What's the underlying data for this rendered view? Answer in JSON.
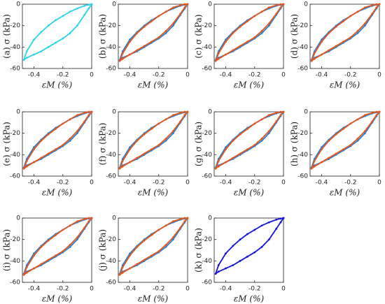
{
  "chart_data": [
    {
      "type": "line",
      "ylabel": "(a) σ (kPa)",
      "xlabel": "εM (%)",
      "xlim": [
        -0.48,
        0
      ],
      "ylim": [
        -60,
        0
      ],
      "xticks": [
        -0.4,
        -0.2,
        0
      ],
      "yticks": [
        -60,
        -40,
        -20,
        0
      ],
      "x": [
        0,
        -0.02,
        -0.05,
        -0.1,
        -0.15,
        -0.2,
        -0.25,
        -0.3,
        -0.35,
        -0.4,
        -0.45,
        -0.47,
        -0.45,
        -0.4,
        -0.35,
        -0.3,
        -0.25,
        -0.2,
        -0.15,
        -0.1,
        -0.05,
        -0.02,
        0
      ],
      "series": [
        {
          "color": "#2ad4ec",
          "values": [
            0,
            -4,
            -10,
            -20,
            -27,
            -32,
            -36,
            -40,
            -44,
            -47,
            -50,
            -52,
            -44,
            -33,
            -26,
            -20,
            -15,
            -11,
            -7,
            -4,
            -1.5,
            -0.5,
            0
          ]
        }
      ]
    },
    {
      "type": "line",
      "ylabel": "(b) σ (kPa)",
      "xlabel": "εM (%)",
      "xlim": [
        -0.48,
        0
      ],
      "ylim": [
        -60,
        0
      ],
      "xticks": [
        -0.4,
        -0.2,
        0
      ],
      "yticks": [
        -60,
        -40,
        -20,
        0
      ],
      "x": [
        0,
        -0.02,
        -0.05,
        -0.1,
        -0.15,
        -0.2,
        -0.25,
        -0.3,
        -0.35,
        -0.4,
        -0.45,
        -0.47,
        -0.45,
        -0.4,
        -0.35,
        -0.3,
        -0.25,
        -0.2,
        -0.15,
        -0.1,
        -0.05,
        -0.02,
        0
      ],
      "series": [
        {
          "color": "#2a7fd4",
          "values": [
            0,
            -4,
            -10,
            -20,
            -27,
            -32,
            -36,
            -40,
            -44,
            -47,
            -50,
            -52,
            -44,
            -33,
            -26,
            -20,
            -15,
            -11,
            -7,
            -4,
            -1.5,
            -0.5,
            0
          ]
        },
        {
          "color": "#e4561e",
          "values": [
            0,
            -3,
            -9,
            -18,
            -25,
            -31,
            -35,
            -39,
            -43,
            -47,
            -51,
            -53,
            -46,
            -35,
            -27,
            -21,
            -16,
            -11,
            -7,
            -3,
            -1,
            0,
            0
          ]
        }
      ]
    },
    {
      "type": "line",
      "ylabel": "(c) σ (kPa)",
      "xlabel": "εM (%)",
      "xlim": [
        -0.48,
        0
      ],
      "ylim": [
        -60,
        0
      ],
      "xticks": [
        -0.4,
        -0.2,
        0
      ],
      "yticks": [
        -60,
        -40,
        -20,
        0
      ],
      "x": [
        0,
        -0.02,
        -0.05,
        -0.1,
        -0.15,
        -0.2,
        -0.25,
        -0.3,
        -0.35,
        -0.4,
        -0.45,
        -0.47,
        -0.45,
        -0.4,
        -0.35,
        -0.3,
        -0.25,
        -0.2,
        -0.15,
        -0.1,
        -0.05,
        -0.02,
        0
      ],
      "series": [
        {
          "color": "#2a7fd4",
          "values": [
            0,
            -4,
            -10,
            -20,
            -27,
            -32,
            -36,
            -40,
            -44,
            -47,
            -50,
            -52,
            -44,
            -33,
            -26,
            -20,
            -15,
            -11,
            -7,
            -4,
            -1.5,
            -0.5,
            0
          ]
        },
        {
          "color": "#e4561e",
          "values": [
            0,
            -3,
            -9,
            -18,
            -25,
            -31,
            -35,
            -39,
            -43,
            -47,
            -51,
            -53,
            -46,
            -35,
            -27,
            -21,
            -16,
            -11,
            -7,
            -3,
            -1,
            0,
            0
          ]
        }
      ]
    },
    {
      "type": "line",
      "ylabel": "(d) σ (kPa)",
      "xlabel": "εM (%)",
      "xlim": [
        -0.48,
        0
      ],
      "ylim": [
        -60,
        0
      ],
      "xticks": [
        -0.4,
        -0.2,
        0
      ],
      "yticks": [
        -60,
        -40,
        -20,
        0
      ],
      "x": [
        0,
        -0.02,
        -0.05,
        -0.1,
        -0.15,
        -0.2,
        -0.25,
        -0.3,
        -0.35,
        -0.4,
        -0.45,
        -0.47,
        -0.45,
        -0.4,
        -0.35,
        -0.3,
        -0.25,
        -0.2,
        -0.15,
        -0.1,
        -0.05,
        -0.02,
        0
      ],
      "series": [
        {
          "color": "#2a7fd4",
          "values": [
            0,
            -4,
            -10,
            -20,
            -27,
            -32,
            -36,
            -40,
            -44,
            -47,
            -50,
            -52,
            -44,
            -33,
            -26,
            -20,
            -15,
            -11,
            -7,
            -4,
            -1.5,
            -0.5,
            0
          ]
        },
        {
          "color": "#e4561e",
          "values": [
            0,
            -3,
            -9,
            -18,
            -25,
            -31,
            -35,
            -39,
            -43,
            -47,
            -51,
            -53,
            -46,
            -35,
            -27,
            -21,
            -16,
            -11,
            -7,
            -3,
            -1,
            0,
            0
          ]
        }
      ]
    },
    {
      "type": "line",
      "ylabel": "(e) σ (kPa)",
      "xlabel": "εM (%)",
      "xlim": [
        -0.48,
        0
      ],
      "ylim": [
        -60,
        0
      ],
      "xticks": [
        -0.4,
        -0.2,
        0
      ],
      "yticks": [
        -60,
        -40,
        -20,
        0
      ],
      "x": [
        0,
        -0.02,
        -0.05,
        -0.1,
        -0.15,
        -0.2,
        -0.25,
        -0.3,
        -0.35,
        -0.4,
        -0.45,
        -0.47,
        -0.45,
        -0.4,
        -0.35,
        -0.3,
        -0.25,
        -0.2,
        -0.15,
        -0.1,
        -0.05,
        -0.02,
        0
      ],
      "series": [
        {
          "color": "#2a7fd4",
          "values": [
            0,
            -4,
            -10,
            -20,
            -27,
            -32,
            -36,
            -40,
            -44,
            -47,
            -50,
            -52,
            -44,
            -33,
            -26,
            -20,
            -15,
            -11,
            -7,
            -4,
            -1.5,
            -0.5,
            0
          ]
        },
        {
          "color": "#e4561e",
          "values": [
            0,
            -3,
            -9,
            -18,
            -25,
            -31,
            -35,
            -39,
            -43,
            -47,
            -51,
            -53,
            -46,
            -35,
            -27,
            -21,
            -16,
            -11,
            -7,
            -3,
            -1,
            0,
            0
          ]
        }
      ]
    },
    {
      "type": "line",
      "ylabel": "(f) σ (kPa)",
      "xlabel": "εM (%)",
      "xlim": [
        -0.48,
        0
      ],
      "ylim": [
        -60,
        0
      ],
      "xticks": [
        -0.4,
        -0.2,
        0
      ],
      "yticks": [
        -60,
        -40,
        -20,
        0
      ],
      "x": [
        0,
        -0.02,
        -0.05,
        -0.1,
        -0.15,
        -0.2,
        -0.25,
        -0.3,
        -0.35,
        -0.4,
        -0.45,
        -0.47,
        -0.45,
        -0.4,
        -0.35,
        -0.3,
        -0.25,
        -0.2,
        -0.15,
        -0.1,
        -0.05,
        -0.02,
        0
      ],
      "series": [
        {
          "color": "#2a7fd4",
          "values": [
            0,
            -4,
            -10,
            -20,
            -27,
            -32,
            -36,
            -40,
            -44,
            -47,
            -50,
            -52,
            -44,
            -33,
            -26,
            -20,
            -15,
            -11,
            -7,
            -4,
            -1.5,
            -0.5,
            0
          ]
        },
        {
          "color": "#e4561e",
          "values": [
            0,
            -3,
            -9,
            -18,
            -25,
            -31,
            -35,
            -39,
            -43,
            -47,
            -51,
            -53,
            -46,
            -35,
            -27,
            -21,
            -16,
            -11,
            -7,
            -3,
            -1,
            0,
            0
          ]
        }
      ]
    },
    {
      "type": "line",
      "ylabel": "(g) σ (kPa)",
      "xlabel": "εM (%)",
      "xlim": [
        -0.48,
        0
      ],
      "ylim": [
        -60,
        0
      ],
      "xticks": [
        -0.4,
        -0.2,
        0
      ],
      "yticks": [
        -60,
        -40,
        -20,
        0
      ],
      "x": [
        0,
        -0.02,
        -0.05,
        -0.1,
        -0.15,
        -0.2,
        -0.25,
        -0.3,
        -0.35,
        -0.4,
        -0.45,
        -0.47,
        -0.45,
        -0.4,
        -0.35,
        -0.3,
        -0.25,
        -0.2,
        -0.15,
        -0.1,
        -0.05,
        -0.02,
        0
      ],
      "series": [
        {
          "color": "#2a7fd4",
          "values": [
            0,
            -4,
            -10,
            -20,
            -27,
            -32,
            -36,
            -40,
            -44,
            -47,
            -50,
            -52,
            -44,
            -33,
            -26,
            -20,
            -15,
            -11,
            -7,
            -4,
            -1.5,
            -0.5,
            0
          ]
        },
        {
          "color": "#e4561e",
          "values": [
            0,
            -3,
            -9,
            -18,
            -25,
            -31,
            -35,
            -39,
            -43,
            -47,
            -51,
            -53,
            -46,
            -35,
            -27,
            -21,
            -16,
            -11,
            -7,
            -3,
            -1,
            0,
            0
          ]
        }
      ]
    },
    {
      "type": "line",
      "ylabel": "(h) σ (kPa)",
      "xlabel": "εM (%)",
      "xlim": [
        -0.48,
        0
      ],
      "ylim": [
        -60,
        0
      ],
      "xticks": [
        -0.4,
        -0.2,
        0
      ],
      "yticks": [
        -60,
        -40,
        -20,
        0
      ],
      "x": [
        0,
        -0.02,
        -0.05,
        -0.1,
        -0.15,
        -0.2,
        -0.25,
        -0.3,
        -0.35,
        -0.4,
        -0.45,
        -0.47,
        -0.45,
        -0.4,
        -0.35,
        -0.3,
        -0.25,
        -0.2,
        -0.15,
        -0.1,
        -0.05,
        -0.02,
        0
      ],
      "series": [
        {
          "color": "#2a7fd4",
          "values": [
            0,
            -4,
            -10,
            -20,
            -27,
            -32,
            -36,
            -40,
            -44,
            -47,
            -50,
            -52,
            -44,
            -33,
            -26,
            -20,
            -15,
            -11,
            -7,
            -4,
            -1.5,
            -0.5,
            0
          ]
        },
        {
          "color": "#e4561e",
          "values": [
            0,
            -3,
            -9,
            -18,
            -25,
            -31,
            -35,
            -39,
            -43,
            -47,
            -51,
            -53,
            -46,
            -35,
            -27,
            -21,
            -16,
            -11,
            -7,
            -3,
            -1,
            0,
            0
          ]
        }
      ]
    },
    {
      "type": "line",
      "ylabel": "(i) σ (kPa)",
      "xlabel": "εM (%)",
      "xlim": [
        -0.48,
        0
      ],
      "ylim": [
        -60,
        0
      ],
      "xticks": [
        -0.4,
        -0.2,
        0
      ],
      "yticks": [
        -60,
        -40,
        -20,
        0
      ],
      "x": [
        0,
        -0.02,
        -0.05,
        -0.1,
        -0.15,
        -0.2,
        -0.25,
        -0.3,
        -0.35,
        -0.4,
        -0.45,
        -0.47,
        -0.45,
        -0.4,
        -0.35,
        -0.3,
        -0.25,
        -0.2,
        -0.15,
        -0.1,
        -0.05,
        -0.02,
        0
      ],
      "series": [
        {
          "color": "#2a7fd4",
          "values": [
            0,
            -4,
            -10,
            -20,
            -27,
            -32,
            -36,
            -40,
            -44,
            -47,
            -50,
            -52,
            -44,
            -33,
            -26,
            -20,
            -15,
            -11,
            -7,
            -4,
            -1.5,
            -0.5,
            0
          ]
        },
        {
          "color": "#e4561e",
          "values": [
            0,
            -3,
            -9,
            -18,
            -25,
            -31,
            -35,
            -39,
            -43,
            -47,
            -51,
            -53,
            -46,
            -35,
            -27,
            -21,
            -16,
            -11,
            -7,
            -3,
            -1,
            0,
            0
          ]
        }
      ]
    },
    {
      "type": "line",
      "ylabel": "(j) σ (kPa)",
      "xlabel": "εM (%)",
      "xlim": [
        -0.48,
        0
      ],
      "ylim": [
        -60,
        0
      ],
      "xticks": [
        -0.4,
        -0.2,
        0
      ],
      "yticks": [
        -60,
        -40,
        -20,
        0
      ],
      "x": [
        0,
        -0.02,
        -0.05,
        -0.1,
        -0.15,
        -0.2,
        -0.25,
        -0.3,
        -0.35,
        -0.4,
        -0.45,
        -0.47,
        -0.45,
        -0.4,
        -0.35,
        -0.3,
        -0.25,
        -0.2,
        -0.15,
        -0.1,
        -0.05,
        -0.02,
        0
      ],
      "series": [
        {
          "color": "#2a7fd4",
          "values": [
            0,
            -4,
            -10,
            -20,
            -27,
            -32,
            -36,
            -40,
            -44,
            -47,
            -50,
            -52,
            -44,
            -33,
            -26,
            -20,
            -15,
            -11,
            -7,
            -4,
            -1.5,
            -0.5,
            0
          ]
        },
        {
          "color": "#e4561e",
          "values": [
            0,
            -3,
            -9,
            -18,
            -25,
            -31,
            -35,
            -39,
            -43,
            -47,
            -51,
            -53,
            -46,
            -35,
            -27,
            -21,
            -16,
            -11,
            -7,
            -3,
            -1,
            0,
            0
          ]
        }
      ]
    },
    {
      "type": "line",
      "ylabel": "(k) σ (kPa)",
      "xlabel": "εM (%)",
      "xlim": [
        -0.48,
        0
      ],
      "ylim": [
        -60,
        0
      ],
      "xticks": [
        -0.4,
        -0.2,
        0
      ],
      "yticks": [
        -60,
        -40,
        -20,
        0
      ],
      "x": [
        0,
        -0.02,
        -0.05,
        -0.1,
        -0.15,
        -0.2,
        -0.25,
        -0.3,
        -0.35,
        -0.4,
        -0.45,
        -0.47,
        -0.45,
        -0.4,
        -0.35,
        -0.3,
        -0.25,
        -0.2,
        -0.15,
        -0.1,
        -0.05,
        -0.02,
        0
      ],
      "series": [
        {
          "color": "#1414d8",
          "values": [
            0,
            -4,
            -10,
            -20,
            -27,
            -32,
            -36,
            -40,
            -44,
            -47,
            -50,
            -52,
            -44,
            -33,
            -26,
            -20,
            -15,
            -11,
            -7,
            -4,
            -1.5,
            -0.5,
            0
          ]
        }
      ]
    }
  ]
}
